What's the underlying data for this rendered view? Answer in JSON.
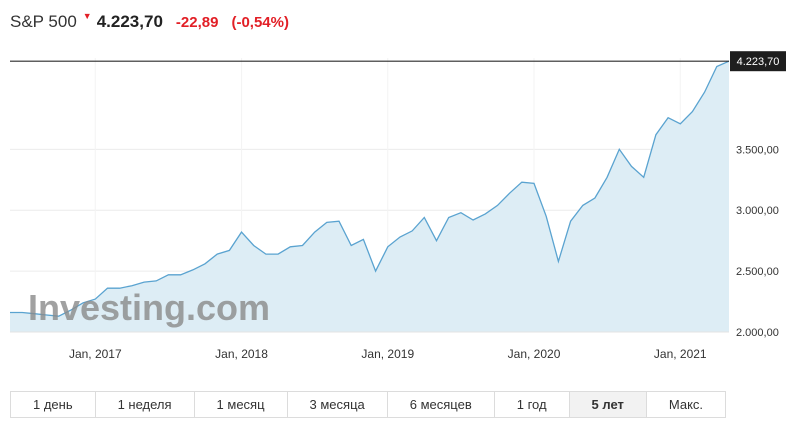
{
  "quote": {
    "name": "S&P 500",
    "direction_icon": "down-triangle-icon",
    "last": "4.223,70",
    "change": "-22,89",
    "change_pct": "(-0,54%)"
  },
  "colors": {
    "negative": "#e21f26",
    "line": "#5aa3d0",
    "fill": "#ddedf5",
    "current_marker": "#2a2a2a"
  },
  "watermark": "Investing.com",
  "chart_data": {
    "type": "area",
    "current_value_label": "4.223,70",
    "current_value": 4223.7,
    "x_tick_labels": [
      "Jan, 2017",
      "Jan, 2018",
      "Jan, 2019",
      "Jan, 2020",
      "Jan, 2021"
    ],
    "y_tick_labels": [
      "2.000,00",
      "2.500,00",
      "3.000,00",
      "3.500,00"
    ],
    "y_ticks": [
      2000,
      2500,
      3000,
      3500
    ],
    "ylim": [
      2000,
      4250
    ],
    "x_start": "2016-06",
    "x_end": "2021-05",
    "grid": "horizontal",
    "series": [
      {
        "dates": [
          "2016-06",
          "2016-07",
          "2016-08",
          "2016-09",
          "2016-10",
          "2016-11",
          "2016-12",
          "2017-01",
          "2017-02",
          "2017-03",
          "2017-04",
          "2017-05",
          "2017-06",
          "2017-07",
          "2017-08",
          "2017-09",
          "2017-10",
          "2017-11",
          "2017-12",
          "2018-01",
          "2018-02",
          "2018-03",
          "2018-04",
          "2018-05",
          "2018-06",
          "2018-07",
          "2018-08",
          "2018-09",
          "2018-10",
          "2018-11",
          "2018-12",
          "2019-01",
          "2019-02",
          "2019-03",
          "2019-04",
          "2019-05",
          "2019-06",
          "2019-07",
          "2019-08",
          "2019-09",
          "2019-10",
          "2019-11",
          "2019-12",
          "2020-01",
          "2020-02",
          "2020-03",
          "2020-04",
          "2020-05",
          "2020-06",
          "2020-07",
          "2020-08",
          "2020-09",
          "2020-10",
          "2020-11",
          "2020-12",
          "2021-01",
          "2021-02",
          "2021-03",
          "2021-04",
          "2021-05"
        ],
        "values": [
          2160,
          2160,
          2150,
          2140,
          2130,
          2180,
          2240,
          2270,
          2360,
          2360,
          2380,
          2410,
          2420,
          2470,
          2470,
          2510,
          2560,
          2640,
          2670,
          2820,
          2710,
          2640,
          2640,
          2700,
          2710,
          2820,
          2900,
          2910,
          2710,
          2760,
          2500,
          2700,
          2780,
          2830,
          2940,
          2750,
          2940,
          2980,
          2920,
          2970,
          3040,
          3140,
          3230,
          3220,
          2950,
          2580,
          2910,
          3040,
          3100,
          3270,
          3500,
          3360,
          3270,
          3620,
          3760,
          3710,
          3810,
          3970,
          4180,
          4223.7
        ]
      }
    ]
  },
  "range_tabs": [
    {
      "label": "1 день",
      "active": false
    },
    {
      "label": "1 неделя",
      "active": false
    },
    {
      "label": "1 месяц",
      "active": false
    },
    {
      "label": "3 месяца",
      "active": false
    },
    {
      "label": "6 месяцев",
      "active": false
    },
    {
      "label": "1 год",
      "active": false
    },
    {
      "label": "5 лет",
      "active": true
    },
    {
      "label": "Макс.",
      "active": false
    }
  ]
}
